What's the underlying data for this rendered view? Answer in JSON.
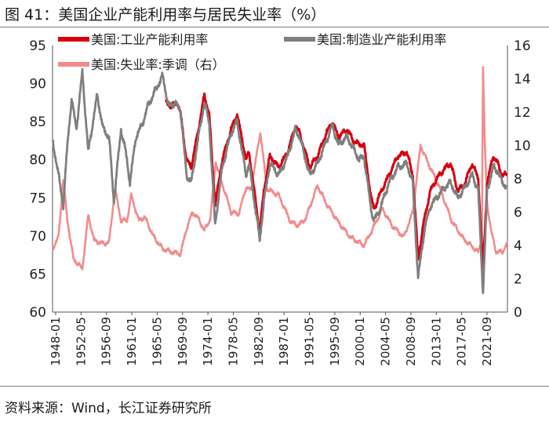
{
  "figure": {
    "title": "图 41：美国企业产能利用率与居民失业率（%）",
    "source": "资料来源：Wind，长江证券研究所"
  },
  "colors": {
    "industrial": "#d7000f",
    "manufacturing": "#7f7f7f",
    "unemployment": "#f28c8c",
    "axis": "#555555"
  },
  "chart_data": {
    "type": "line",
    "title": "美国企业产能利用率与居民失业率（%）",
    "xlabel": "",
    "ylabel": "",
    "ylim": [
      60,
      95
    ],
    "y2lim": [
      0,
      16
    ],
    "yticks": [
      "95",
      "90",
      "85",
      "80",
      "75",
      "70",
      "65",
      "60"
    ],
    "y2ticks": [
      "16",
      "14",
      "12",
      "10",
      "8",
      "6",
      "4",
      "2",
      "0"
    ],
    "xticks": [
      "1948-01",
      "1952-05",
      "1956-09",
      "1961-01",
      "1965-05",
      "1969-09",
      "1974-01",
      "1978-05",
      "1982-09",
      "1987-01",
      "1991-05",
      "1995-09",
      "2000-01",
      "2004-05",
      "2008-09",
      "2013-01",
      "2017-05",
      "2021-09"
    ],
    "xrange": [
      1948.0,
      2024.4
    ],
    "series": [
      {
        "name": "美国:工业产能利用率",
        "axis": "left",
        "x": [
          1967.0,
          1968.0,
          1969.0,
          1969.5,
          1970.5,
          1971.3,
          1972.5,
          1973.5,
          1974.3,
          1975.3,
          1976.5,
          1978.0,
          1979.0,
          1980.5,
          1981.0,
          1982.8,
          1983.5,
          1984.5,
          1986.0,
          1987.5,
          1988.8,
          1989.5,
          1991.2,
          1992.5,
          1994.0,
          1995.0,
          1996.0,
          1997.5,
          1998.5,
          1999.5,
          2000.3,
          2001.5,
          2002.0,
          2003.0,
          2004.5,
          2006.0,
          2007.5,
          2008.5,
          2009.4,
          2010.5,
          2011.5,
          2012.5,
          2014.0,
          2014.9,
          2016.0,
          2017.0,
          2018.5,
          2019.5,
          2020.3,
          2021.0,
          2022.0,
          2022.8,
          2023.5,
          2024.3
        ],
        "values": [
          87.5,
          87.0,
          87.5,
          86.0,
          80.0,
          79.0,
          84.0,
          88.5,
          86.0,
          74.0,
          80.0,
          84.0,
          86.0,
          80.0,
          81.0,
          70.5,
          76.0,
          80.5,
          79.0,
          81.0,
          84.5,
          83.5,
          79.0,
          80.5,
          83.5,
          85.0,
          83.0,
          84.0,
          82.5,
          82.0,
          82.0,
          75.0,
          73.5,
          75.5,
          78.0,
          80.5,
          81.0,
          78.0,
          67.0,
          72.5,
          76.0,
          77.5,
          79.0,
          79.5,
          76.0,
          76.5,
          79.5,
          77.5,
          65.5,
          77.0,
          80.5,
          79.5,
          78.0,
          78.0
        ]
      },
      {
        "name": "美国:制造业产能利用率",
        "axis": "left",
        "x": [
          1948.0,
          1948.8,
          1949.8,
          1950.5,
          1951.2,
          1952.0,
          1953.0,
          1954.0,
          1955.5,
          1956.5,
          1957.5,
          1958.3,
          1959.5,
          1960.3,
          1961.0,
          1962.0,
          1963.0,
          1964.0,
          1965.5,
          1966.5,
          1967.5,
          1968.5,
          1969.5,
          1970.5,
          1971.3,
          1972.5,
          1973.5,
          1974.3,
          1975.3,
          1976.5,
          1978.0,
          1979.0,
          1980.5,
          1981.0,
          1982.8,
          1983.5,
          1984.5,
          1986.0,
          1987.5,
          1988.8,
          1989.5,
          1991.2,
          1992.5,
          1994.0,
          1995.0,
          1996.0,
          1997.5,
          1998.5,
          1999.5,
          2000.3,
          2001.5,
          2002.0,
          2003.0,
          2004.5,
          2006.0,
          2007.5,
          2008.5,
          2009.4,
          2010.5,
          2011.5,
          2012.5,
          2014.0,
          2014.9,
          2016.0,
          2017.0,
          2018.5,
          2019.5,
          2020.3,
          2021.0,
          2022.0,
          2022.8,
          2023.5,
          2024.3
        ],
        "values": [
          82.5,
          79.0,
          74.0,
          82.0,
          88.0,
          84.0,
          91.5,
          81.0,
          88.5,
          84.0,
          83.0,
          74.5,
          84.0,
          81.0,
          77.0,
          83.0,
          84.5,
          87.0,
          89.5,
          91.0,
          87.0,
          87.5,
          86.5,
          78.0,
          77.0,
          83.0,
          87.5,
          85.0,
          71.5,
          79.0,
          83.5,
          85.0,
          78.0,
          79.5,
          69.5,
          74.5,
          79.5,
          78.0,
          80.5,
          84.0,
          83.0,
          78.0,
          79.5,
          82.5,
          84.5,
          82.0,
          83.0,
          81.5,
          80.0,
          80.5,
          73.5,
          72.0,
          73.5,
          77.0,
          79.0,
          79.5,
          77.0,
          64.5,
          71.0,
          74.0,
          75.0,
          76.5,
          77.0,
          75.0,
          76.0,
          78.0,
          76.0,
          62.5,
          76.0,
          79.0,
          78.5,
          77.0,
          76.5
        ]
      },
      {
        "name": "美国:失业率:季调（右）",
        "axis": "right",
        "x": [
          1948.0,
          1949.0,
          1949.8,
          1950.5,
          1951.5,
          1952.5,
          1953.0,
          1954.0,
          1955.0,
          1956.5,
          1957.5,
          1958.5,
          1959.5,
          1960.5,
          1961.2,
          1962.5,
          1963.5,
          1965.0,
          1966.5,
          1968.0,
          1969.5,
          1970.5,
          1971.5,
          1972.5,
          1973.5,
          1974.5,
          1975.4,
          1976.5,
          1978.0,
          1979.3,
          1980.5,
          1981.3,
          1982.9,
          1984.0,
          1986.0,
          1988.0,
          1989.3,
          1990.5,
          1992.5,
          1994.0,
          1996.0,
          1998.0,
          2000.3,
          2001.5,
          2003.4,
          2005.0,
          2007.0,
          2008.5,
          2009.8,
          2011.0,
          2013.0,
          2015.0,
          2017.0,
          2019.5,
          2020.1,
          2020.3,
          2020.6,
          2021.0,
          2021.7,
          2022.5,
          2023.5,
          2024.4
        ],
        "values": [
          3.8,
          4.5,
          7.9,
          5.5,
          3.2,
          2.8,
          2.6,
          5.8,
          4.3,
          4.1,
          4.2,
          7.4,
          5.5,
          5.5,
          7.0,
          5.5,
          5.7,
          4.5,
          3.8,
          3.6,
          3.5,
          5.0,
          6.0,
          5.6,
          4.9,
          5.6,
          9.0,
          7.7,
          6.0,
          5.9,
          7.5,
          7.3,
          10.8,
          7.4,
          7.0,
          5.4,
          5.2,
          5.6,
          7.6,
          6.5,
          5.4,
          4.5,
          4.0,
          4.8,
          6.2,
          5.2,
          4.5,
          6.0,
          10.0,
          9.0,
          7.5,
          5.5,
          4.4,
          3.6,
          4.4,
          14.7,
          10.0,
          6.5,
          4.8,
          3.6,
          3.6,
          4.1
        ]
      }
    ],
    "legend": {
      "placement": "top",
      "entries": [
        "美国:工业产能利用率",
        "美国:制造业产能利用率",
        "美国:失业率:季调（右）"
      ]
    }
  }
}
